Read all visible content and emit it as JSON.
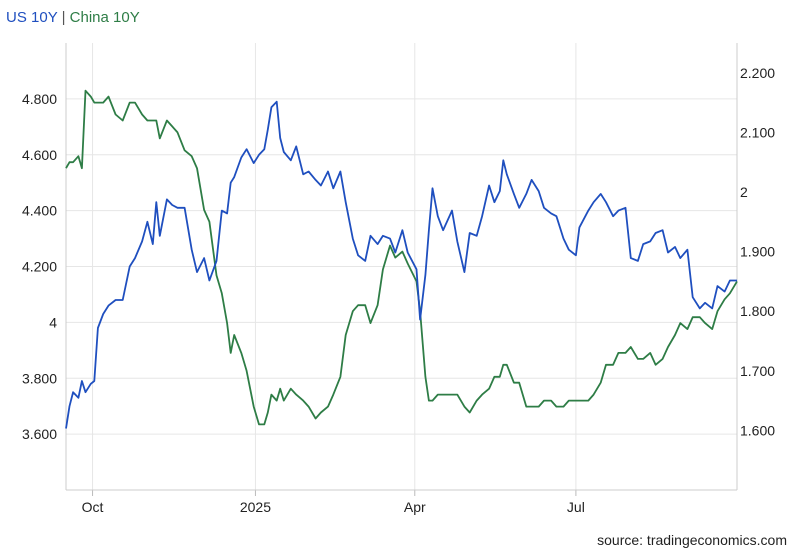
{
  "legend": {
    "us": "US 10Y",
    "sep": " | ",
    "china": "China 10Y"
  },
  "source": "source: tradingeconomics.com",
  "colors": {
    "us": "#1f4fbf",
    "china": "#2e7d46",
    "grid": "#e6e6e6"
  },
  "chart_data": {
    "type": "line",
    "grid": true,
    "legend_position": "top-left",
    "x_ticks": [
      "Oct",
      "2025",
      "Apr",
      "Jul"
    ],
    "x_tick_positions": [
      "2024-10-01",
      "2025-01-01",
      "2025-04-01",
      "2025-07-01"
    ],
    "xlim": [
      "2024-09-16",
      "2025-09-30"
    ],
    "y_left": {
      "ylim": [
        3.4,
        5.0
      ],
      "ticks": [
        3.6,
        3.8,
        4.0,
        4.2,
        4.4,
        4.6,
        4.8
      ],
      "tick_labels": [
        "3.600",
        "3.800",
        "4",
        "4.200",
        "4.400",
        "4.600",
        "4.800"
      ]
    },
    "y_right": {
      "ylim": [
        1.5,
        2.25
      ],
      "ticks": [
        1.6,
        1.7,
        1.8,
        1.9,
        2.0,
        2.1,
        2.2
      ],
      "tick_labels": [
        "1.600",
        "1.700",
        "1.800",
        "1.900",
        "2",
        "2.100",
        "2.200"
      ]
    },
    "series": [
      {
        "name": "US 10Y",
        "axis": "left",
        "x": [
          "2024-09-16",
          "2024-09-18",
          "2024-09-20",
          "2024-09-23",
          "2024-09-25",
          "2024-09-27",
          "2024-09-30",
          "2024-10-02",
          "2024-10-04",
          "2024-10-07",
          "2024-10-10",
          "2024-10-14",
          "2024-10-18",
          "2024-10-22",
          "2024-10-25",
          "2024-10-29",
          "2024-11-01",
          "2024-11-04",
          "2024-11-06",
          "2024-11-08",
          "2024-11-12",
          "2024-11-15",
          "2024-11-18",
          "2024-11-22",
          "2024-11-26",
          "2024-11-29",
          "2024-12-03",
          "2024-12-06",
          "2024-12-10",
          "2024-12-13",
          "2024-12-16",
          "2024-12-18",
          "2024-12-20",
          "2024-12-24",
          "2024-12-27",
          "2024-12-31",
          "2025-01-03",
          "2025-01-06",
          "2025-01-08",
          "2025-01-10",
          "2025-01-13",
          "2025-01-15",
          "2025-01-17",
          "2025-01-21",
          "2025-01-24",
          "2025-01-28",
          "2025-01-31",
          "2025-02-04",
          "2025-02-07",
          "2025-02-11",
          "2025-02-14",
          "2025-02-18",
          "2025-02-21",
          "2025-02-25",
          "2025-02-28",
          "2025-03-04",
          "2025-03-07",
          "2025-03-11",
          "2025-03-14",
          "2025-03-18",
          "2025-03-21",
          "2025-03-25",
          "2025-03-28",
          "2025-04-02",
          "2025-04-04",
          "2025-04-07",
          "2025-04-09",
          "2025-04-11",
          "2025-04-14",
          "2025-04-17",
          "2025-04-22",
          "2025-04-25",
          "2025-04-29",
          "2025-05-02",
          "2025-05-06",
          "2025-05-09",
          "2025-05-13",
          "2025-05-16",
          "2025-05-19",
          "2025-05-21",
          "2025-05-23",
          "2025-05-27",
          "2025-05-30",
          "2025-06-03",
          "2025-06-06",
          "2025-06-10",
          "2025-06-13",
          "2025-06-17",
          "2025-06-20",
          "2025-06-24",
          "2025-06-27",
          "2025-07-01",
          "2025-07-03",
          "2025-07-08",
          "2025-07-11",
          "2025-07-15",
          "2025-07-18",
          "2025-07-22",
          "2025-07-25",
          "2025-07-29",
          "2025-08-01",
          "2025-08-05",
          "2025-08-08",
          "2025-08-12",
          "2025-08-15",
          "2025-08-19",
          "2025-08-22",
          "2025-08-26",
          "2025-08-29",
          "2025-09-02",
          "2025-09-05",
          "2025-09-09",
          "2025-09-12",
          "2025-09-16",
          "2025-09-19",
          "2025-09-23",
          "2025-09-26",
          "2025-09-30"
        ],
        "values": [
          3.62,
          3.7,
          3.75,
          3.73,
          3.79,
          3.75,
          3.78,
          3.79,
          3.98,
          4.03,
          4.06,
          4.08,
          4.08,
          4.2,
          4.23,
          4.29,
          4.36,
          4.28,
          4.43,
          4.31,
          4.44,
          4.42,
          4.41,
          4.41,
          4.26,
          4.18,
          4.23,
          4.15,
          4.22,
          4.4,
          4.39,
          4.5,
          4.52,
          4.59,
          4.62,
          4.57,
          4.6,
          4.62,
          4.69,
          4.77,
          4.79,
          4.66,
          4.61,
          4.58,
          4.63,
          4.53,
          4.54,
          4.51,
          4.49,
          4.54,
          4.48,
          4.54,
          4.43,
          4.3,
          4.24,
          4.22,
          4.31,
          4.28,
          4.31,
          4.3,
          4.25,
          4.33,
          4.25,
          4.19,
          4.01,
          4.17,
          4.33,
          4.48,
          4.38,
          4.33,
          4.4,
          4.29,
          4.18,
          4.32,
          4.31,
          4.38,
          4.49,
          4.43,
          4.47,
          4.58,
          4.53,
          4.46,
          4.41,
          4.46,
          4.51,
          4.47,
          4.41,
          4.39,
          4.38,
          4.3,
          4.26,
          4.24,
          4.34,
          4.4,
          4.43,
          4.46,
          4.43,
          4.38,
          4.4,
          4.41,
          4.23,
          4.22,
          4.28,
          4.29,
          4.32,
          4.33,
          4.25,
          4.27,
          4.23,
          4.26,
          4.09,
          4.05,
          4.07,
          4.05,
          4.13,
          4.11,
          4.15,
          4.15
        ]
      },
      {
        "name": "China 10Y",
        "axis": "right",
        "x": [
          "2024-09-16",
          "2024-09-18",
          "2024-09-20",
          "2024-09-23",
          "2024-09-25",
          "2024-09-27",
          "2024-09-30",
          "2024-10-02",
          "2024-10-04",
          "2024-10-07",
          "2024-10-10",
          "2024-10-14",
          "2024-10-18",
          "2024-10-22",
          "2024-10-25",
          "2024-10-29",
          "2024-11-01",
          "2024-11-04",
          "2024-11-06",
          "2024-11-08",
          "2024-11-12",
          "2024-11-15",
          "2024-11-18",
          "2024-11-22",
          "2024-11-26",
          "2024-11-29",
          "2024-12-03",
          "2024-12-06",
          "2024-12-10",
          "2024-12-13",
          "2024-12-16",
          "2024-12-18",
          "2024-12-20",
          "2024-12-24",
          "2024-12-27",
          "2024-12-31",
          "2025-01-03",
          "2025-01-06",
          "2025-01-08",
          "2025-01-10",
          "2025-01-13",
          "2025-01-15",
          "2025-01-17",
          "2025-01-21",
          "2025-01-24",
          "2025-01-28",
          "2025-01-31",
          "2025-02-04",
          "2025-02-07",
          "2025-02-11",
          "2025-02-14",
          "2025-02-18",
          "2025-02-21",
          "2025-02-25",
          "2025-02-28",
          "2025-03-04",
          "2025-03-07",
          "2025-03-11",
          "2025-03-14",
          "2025-03-18",
          "2025-03-21",
          "2025-03-25",
          "2025-03-28",
          "2025-04-02",
          "2025-04-04",
          "2025-04-07",
          "2025-04-09",
          "2025-04-11",
          "2025-04-14",
          "2025-04-17",
          "2025-04-22",
          "2025-04-25",
          "2025-04-29",
          "2025-05-02",
          "2025-05-06",
          "2025-05-09",
          "2025-05-13",
          "2025-05-16",
          "2025-05-19",
          "2025-05-21",
          "2025-05-23",
          "2025-05-27",
          "2025-05-30",
          "2025-06-03",
          "2025-06-06",
          "2025-06-10",
          "2025-06-13",
          "2025-06-17",
          "2025-06-20",
          "2025-06-24",
          "2025-06-27",
          "2025-07-01",
          "2025-07-03",
          "2025-07-08",
          "2025-07-11",
          "2025-07-15",
          "2025-07-18",
          "2025-07-22",
          "2025-07-25",
          "2025-07-29",
          "2025-08-01",
          "2025-08-05",
          "2025-08-08",
          "2025-08-12",
          "2025-08-15",
          "2025-08-19",
          "2025-08-22",
          "2025-08-26",
          "2025-08-29",
          "2025-09-02",
          "2025-09-05",
          "2025-09-09",
          "2025-09-12",
          "2025-09-16",
          "2025-09-19",
          "2025-09-23",
          "2025-09-26",
          "2025-09-30"
        ],
        "values": [
          2.04,
          2.05,
          2.05,
          2.06,
          2.04,
          2.17,
          2.16,
          2.15,
          2.15,
          2.15,
          2.16,
          2.13,
          2.12,
          2.15,
          2.15,
          2.13,
          2.12,
          2.12,
          2.12,
          2.09,
          2.12,
          2.11,
          2.1,
          2.07,
          2.06,
          2.04,
          1.97,
          1.95,
          1.86,
          1.83,
          1.78,
          1.73,
          1.76,
          1.73,
          1.7,
          1.64,
          1.61,
          1.61,
          1.63,
          1.66,
          1.65,
          1.67,
          1.65,
          1.67,
          1.66,
          1.65,
          1.64,
          1.62,
          1.63,
          1.64,
          1.66,
          1.69,
          1.76,
          1.8,
          1.81,
          1.81,
          1.78,
          1.81,
          1.87,
          1.91,
          1.89,
          1.9,
          1.88,
          1.85,
          1.8,
          1.69,
          1.65,
          1.65,
          1.66,
          1.66,
          1.66,
          1.66,
          1.64,
          1.63,
          1.65,
          1.66,
          1.67,
          1.69,
          1.69,
          1.71,
          1.71,
          1.68,
          1.68,
          1.64,
          1.64,
          1.64,
          1.65,
          1.65,
          1.64,
          1.64,
          1.65,
          1.65,
          1.65,
          1.65,
          1.66,
          1.68,
          1.71,
          1.71,
          1.73,
          1.73,
          1.74,
          1.72,
          1.72,
          1.73,
          1.71,
          1.72,
          1.74,
          1.76,
          1.78,
          1.77,
          1.79,
          1.79,
          1.78,
          1.77,
          1.8,
          1.82,
          1.83,
          1.85
        ]
      }
    ]
  }
}
